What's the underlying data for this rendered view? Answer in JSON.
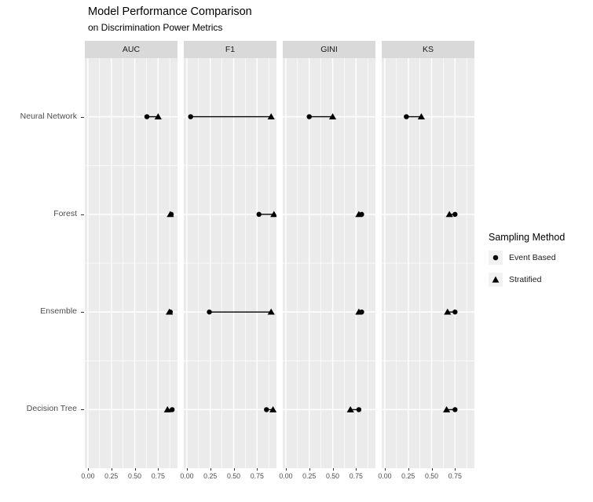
{
  "title": "Model Performance Comparison",
  "subtitle": "on Discrimination Power Metrics",
  "legend": {
    "title": "Sampling Method",
    "items": [
      {
        "label": "Event Based",
        "marker": "circle-icon"
      },
      {
        "label": "Stratified",
        "marker": "triangle-icon"
      }
    ]
  },
  "chart_data": {
    "type": "scatter",
    "subtype": "dumbbell-dotplot-faceted",
    "facets": [
      "AUC",
      "F1",
      "GINI",
      "KS"
    ],
    "categories": [
      "Neural Network",
      "Forest",
      "Ensemble",
      "Decision Tree"
    ],
    "x_tick_labels": [
      "0.00",
      "0.25",
      "0.50",
      "0.75"
    ],
    "x_tick_values": [
      0,
      0.25,
      0.5,
      0.75
    ],
    "x_minor_values": [
      0.125,
      0.375,
      0.625,
      0.875
    ],
    "xlim": [
      -0.033,
      0.957
    ],
    "grid": "on",
    "legend_position": "right",
    "series": [
      {
        "name": "Event Based",
        "marker": "circle",
        "values_by_facet": {
          "AUC": [
            0.63,
            0.89,
            0.88,
            0.9
          ],
          "F1": [
            0.04,
            0.77,
            0.24,
            0.85
          ],
          "GINI": [
            0.25,
            0.81,
            0.81,
            0.78
          ],
          "KS": [
            0.23,
            0.75,
            0.75,
            0.75
          ]
        }
      },
      {
        "name": "Stratified",
        "marker": "triangle",
        "values_by_facet": {
          "AUC": [
            0.75,
            0.88,
            0.87,
            0.85
          ],
          "F1": [
            0.9,
            0.93,
            0.9,
            0.92
          ],
          "GINI": [
            0.5,
            0.78,
            0.78,
            0.69
          ],
          "KS": [
            0.39,
            0.69,
            0.67,
            0.66
          ]
        }
      }
    ],
    "colors": {
      "panel_bg": "#EBEBEB",
      "strip_bg": "#D9D9D9",
      "grid": "#FFFFFF",
      "point": "#000000",
      "axis_text": "#4D4D4D",
      "tick": "#333333",
      "legend_key_bg": "#F2F2F2"
    }
  }
}
